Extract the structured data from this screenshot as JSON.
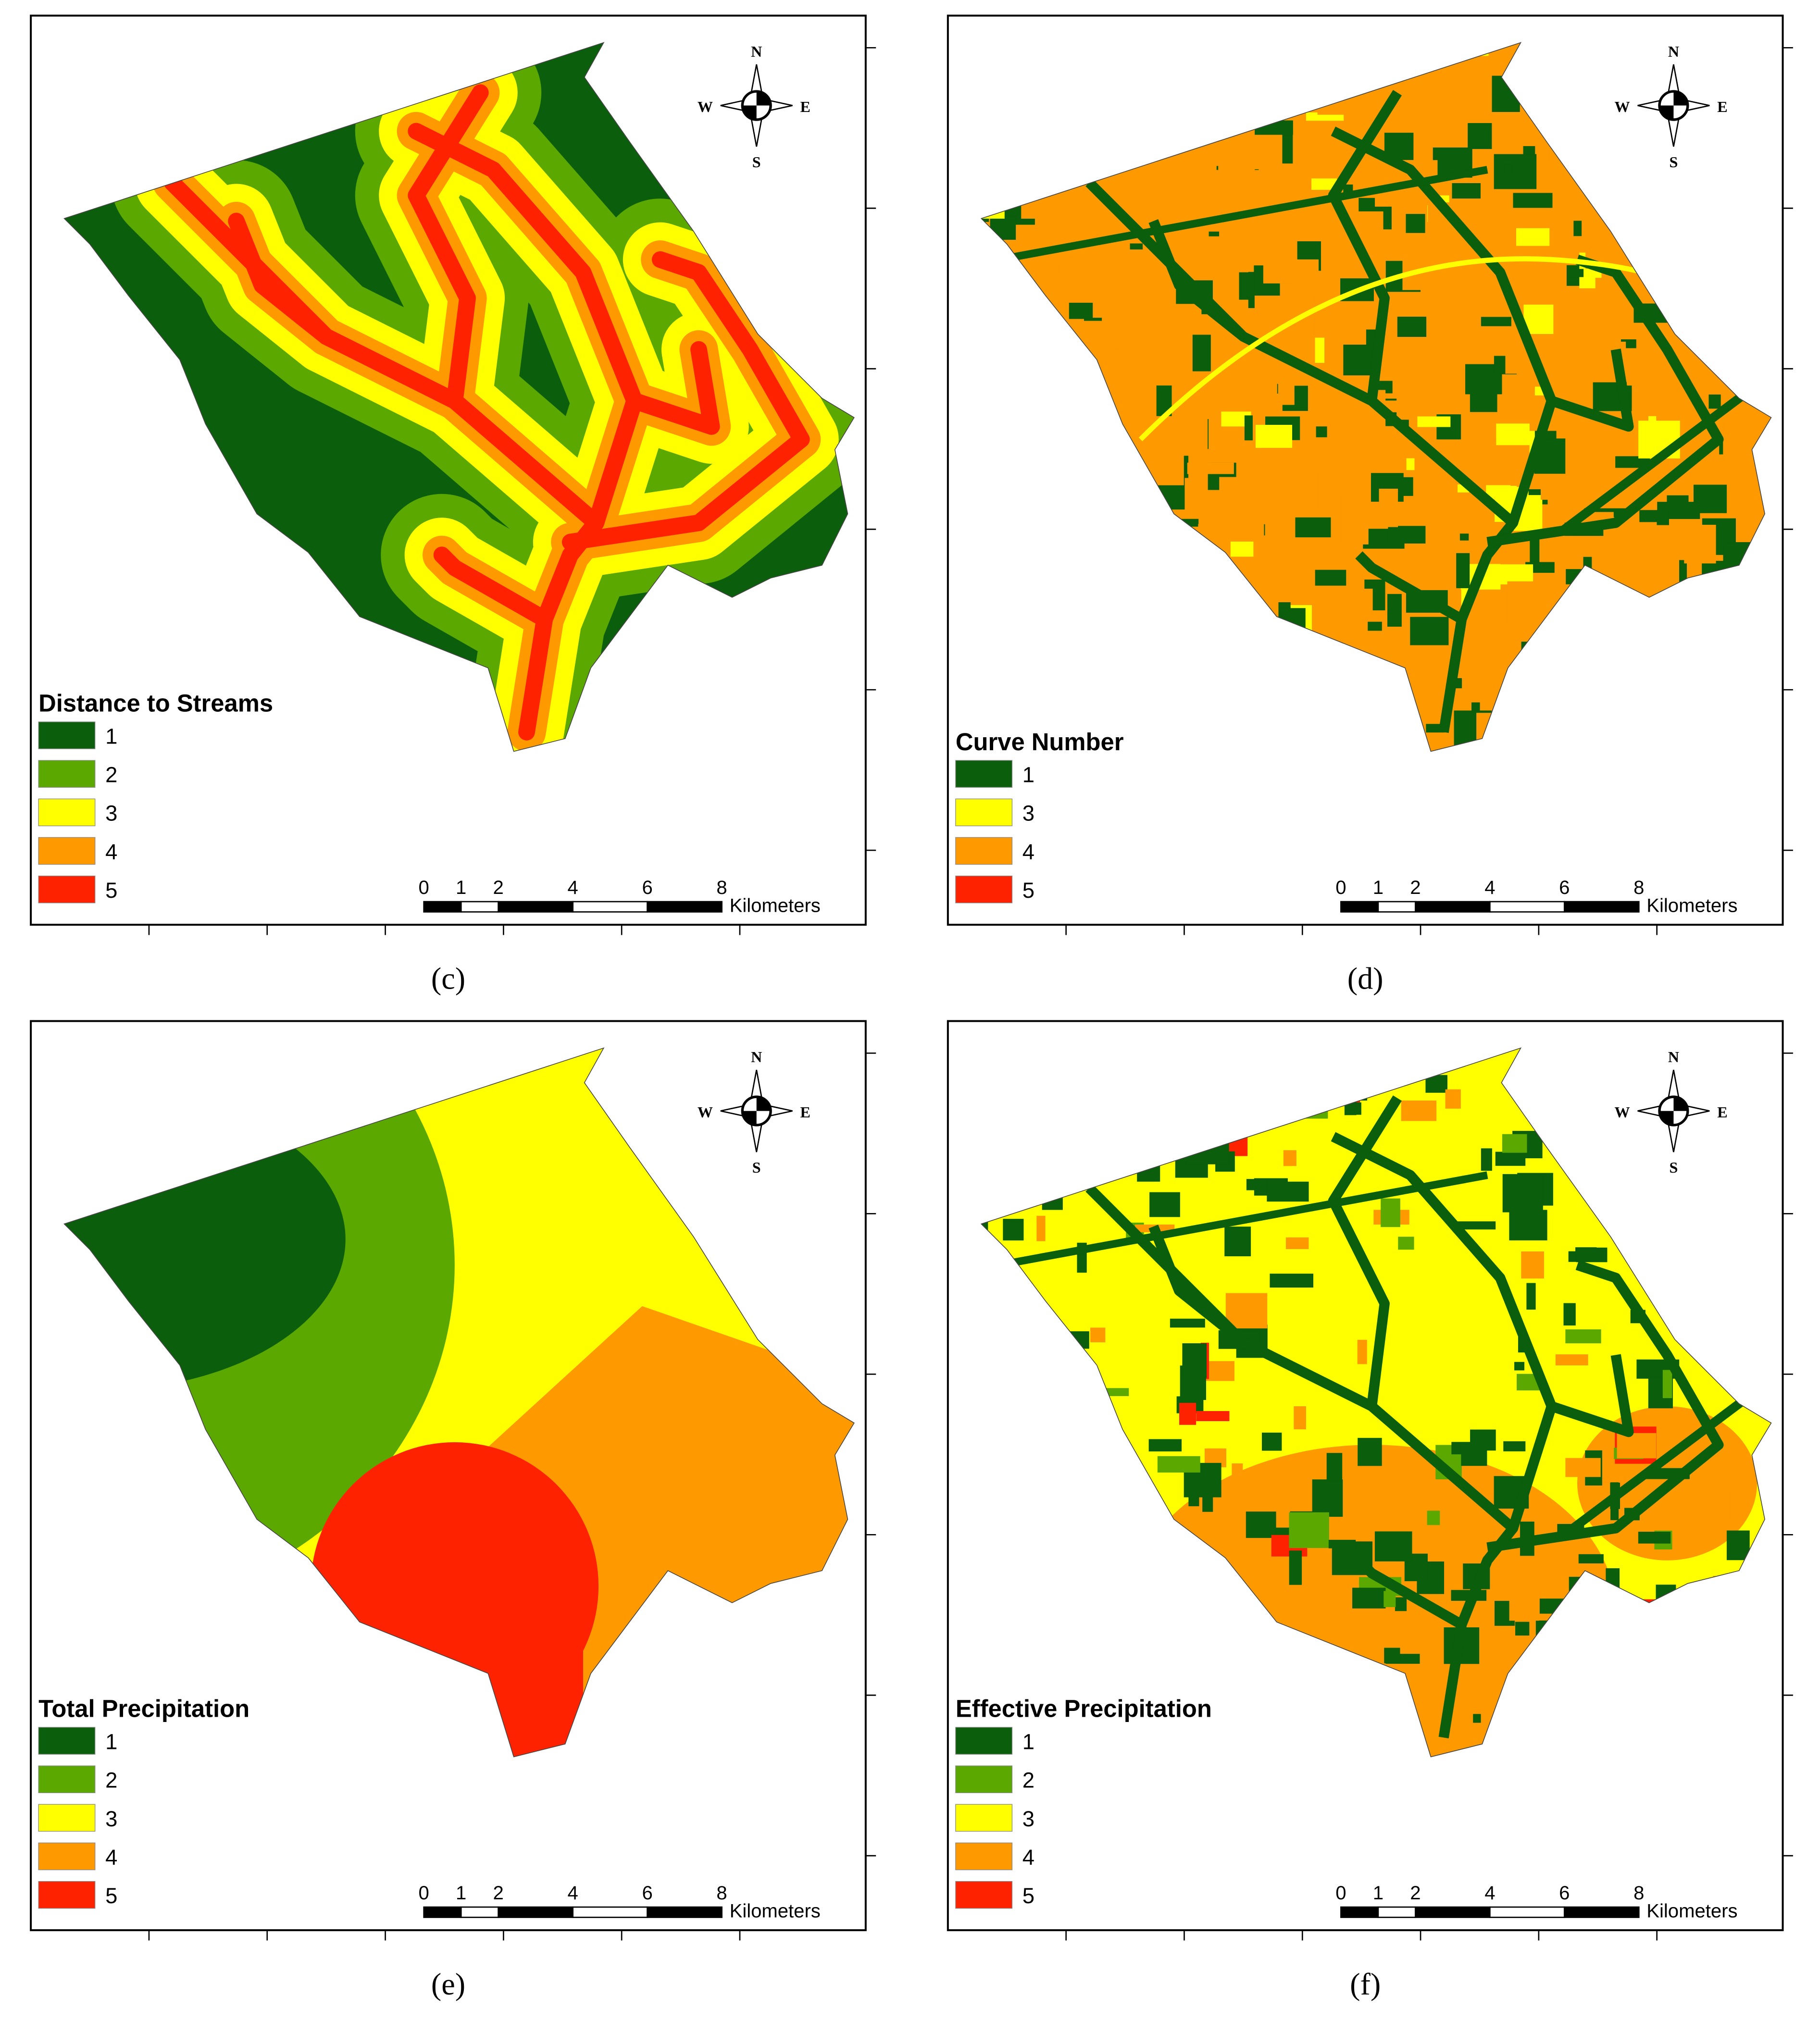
{
  "panels": [
    {
      "caption": "(c)",
      "kind": "streams",
      "legend_title": "Distance to Streams",
      "legend": [
        {
          "label": "1",
          "color": "#0b5e0b"
        },
        {
          "label": "2",
          "color": "#5aa800"
        },
        {
          "label": "3",
          "color": "#ffff00"
        },
        {
          "label": "4",
          "color": "#ff9900"
        },
        {
          "label": "5",
          "color": "#ff2200"
        }
      ]
    },
    {
      "caption": "(d)",
      "kind": "curve",
      "legend_title": "Curve Number",
      "legend": [
        {
          "label": "1",
          "color": "#0b5e0b"
        },
        {
          "label": "3",
          "color": "#ffff00"
        },
        {
          "label": "4",
          "color": "#ff9900"
        },
        {
          "label": "5",
          "color": "#ff2200"
        }
      ]
    },
    {
      "caption": "(e)",
      "kind": "total",
      "legend_title": "Total Precipitation",
      "legend": [
        {
          "label": "1",
          "color": "#0b5e0b"
        },
        {
          "label": "2",
          "color": "#5aa800"
        },
        {
          "label": "3",
          "color": "#ffff00"
        },
        {
          "label": "4",
          "color": "#ff9900"
        },
        {
          "label": "5",
          "color": "#ff2200"
        }
      ]
    },
    {
      "caption": "(f)",
      "kind": "effective",
      "legend_title": "Effective Precipitation",
      "legend": [
        {
          "label": "1",
          "color": "#0b5e0b"
        },
        {
          "label": "2",
          "color": "#5aa800"
        },
        {
          "label": "3",
          "color": "#ffff00"
        },
        {
          "label": "4",
          "color": "#ff9900"
        },
        {
          "label": "5",
          "color": "#ff2200"
        }
      ]
    }
  ],
  "scale_bar": {
    "ticks": [
      0,
      1,
      2,
      4,
      6,
      8
    ],
    "unit": "Kilometers"
  },
  "compass": {
    "n": "N",
    "s": "S",
    "e": "E",
    "w": "W"
  }
}
